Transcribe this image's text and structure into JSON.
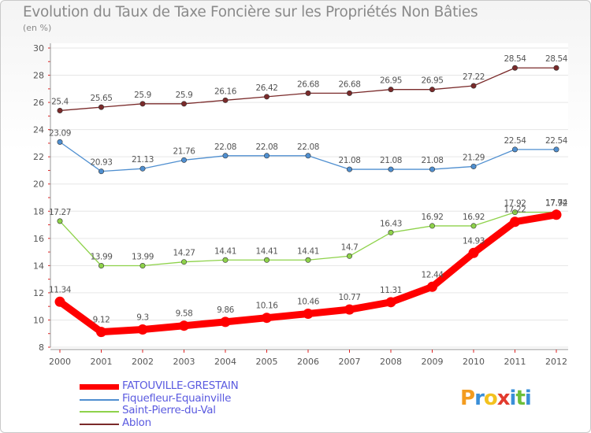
{
  "chart_data": {
    "type": "line",
    "title": "Evolution du Taux de Taxe Foncière sur les Propriétés Non Bâties",
    "unit_label": "(en %)",
    "xlabel": "",
    "ylabel": "(en %)",
    "ylim": [
      8,
      30
    ],
    "y_ticks": [
      "8",
      "10",
      "12",
      "14",
      "16",
      "18",
      "20",
      "22",
      "24",
      "26",
      "28",
      "30"
    ],
    "categories": [
      "2000",
      "2001",
      "2002",
      "2003",
      "2004",
      "2005",
      "2006",
      "2007",
      "2008",
      "2009",
      "2010",
      "2011",
      "2012"
    ],
    "series": [
      {
        "name": "Ablon",
        "color": "#7a2a2a",
        "values": [
          25.4,
          25.65,
          25.9,
          25.9,
          26.16,
          26.42,
          26.68,
          26.68,
          26.95,
          26.95,
          27.22,
          28.54,
          28.54
        ],
        "labels": [
          "25.4",
          "25.65",
          "25.9",
          "25.9",
          "26.16",
          "26.42",
          "26.68",
          "26.68",
          "26.95",
          "26.95",
          "27.22",
          "28.54",
          "28.54"
        ]
      },
      {
        "name": "Fiquefleur-Equainville",
        "color": "#4f8fd0",
        "values": [
          23.09,
          20.93,
          21.13,
          21.76,
          22.08,
          22.08,
          22.08,
          21.08,
          21.08,
          21.08,
          21.29,
          22.54,
          22.54
        ],
        "labels": [
          "23.09",
          "20.93",
          "21.13",
          "21.76",
          "22.08",
          "22.08",
          "22.08",
          "21.08",
          "21.08",
          "21.08",
          "21.29",
          "22.54",
          "22.54"
        ]
      },
      {
        "name": "Saint-Pierre-du-Val",
        "color": "#8ed24a",
        "values": [
          17.27,
          13.99,
          13.99,
          14.27,
          14.41,
          14.41,
          14.41,
          14.7,
          16.43,
          16.92,
          16.92,
          17.92,
          17.92
        ],
        "labels": [
          "17.27",
          "13.99",
          "13.99",
          "14.27",
          "14.41",
          "14.41",
          "14.41",
          "14.7",
          "16.43",
          "16.92",
          "16.92",
          "17.92",
          "17.92"
        ]
      },
      {
        "name": "FATOUVILLE-GRESTAIN",
        "color": "#ff0000",
        "values": [
          11.34,
          9.12,
          9.3,
          9.58,
          9.86,
          10.16,
          10.46,
          10.77,
          11.31,
          12.44,
          14.93,
          17.22,
          17.74
        ],
        "labels": [
          "11.34",
          "9.12",
          "9.3",
          "9.58",
          "9.86",
          "10.16",
          "10.46",
          "10.77",
          "11.31",
          "12.44",
          "14.93",
          "17.22",
          "17.74"
        ]
      }
    ],
    "legend": [
      {
        "name": "FATOUVILLE-GRESTAIN",
        "color": "#ff0000",
        "style": "thick"
      },
      {
        "name": "Fiquefleur-Equainville",
        "color": "#4f8fd0",
        "style": "thin"
      },
      {
        "name": "Saint-Pierre-du-Val",
        "color": "#8ed24a",
        "style": "thin"
      },
      {
        "name": "Ablon",
        "color": "#7a2a2a",
        "style": "thin"
      }
    ]
  },
  "branding": {
    "logo_letters": [
      "P",
      "r",
      "o",
      "x",
      "i",
      "t",
      "i"
    ],
    "logo_colors": [
      "#f39c1f",
      "#3a8fd8",
      "#f3c21f",
      "#e23b2e",
      "#3a8fd8",
      "#6cbf3a",
      "#3a8fd8"
    ]
  }
}
